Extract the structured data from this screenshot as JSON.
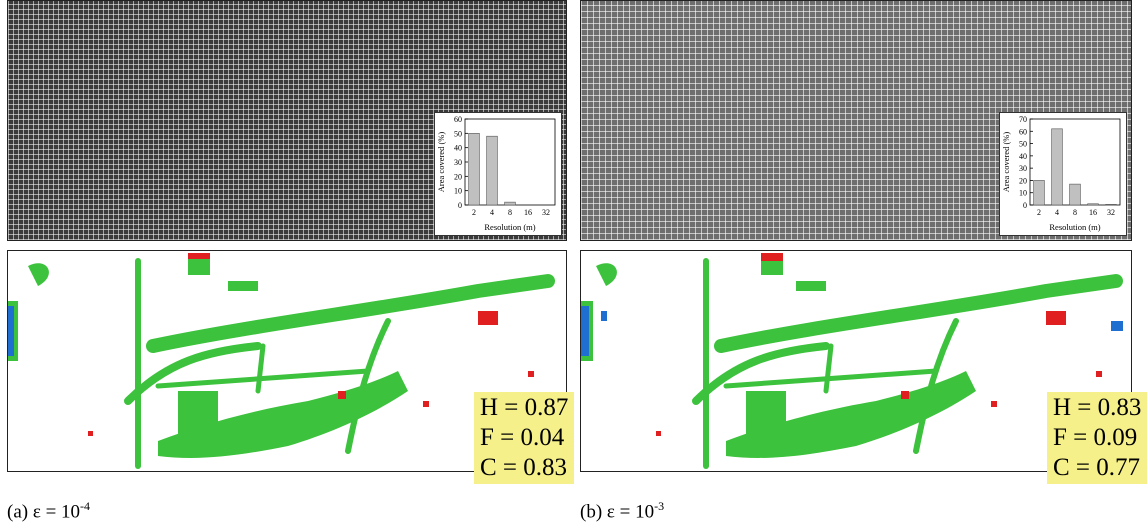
{
  "panels": {
    "a": {
      "caption_prefix": "(a) ε = 10",
      "caption_exp": "-4",
      "stats": {
        "h": "H = 0.87",
        "f": "F = 0.04",
        "c": "C = 0.83"
      }
    },
    "b": {
      "caption_prefix": "(b) ε = 10",
      "caption_exp": "-3",
      "stats": {
        "h": "H = 0.83",
        "f": "F = 0.09",
        "c": "C = 0.77"
      }
    }
  },
  "colors": {
    "hit": "#3cc23c",
    "false_alarm": "#e02020",
    "miss": "#1f6fd0",
    "bar": "#c0c0c0"
  },
  "chart_data": [
    {
      "type": "bar",
      "categories": [
        "2",
        "4",
        "8",
        "16",
        "32"
      ],
      "values": [
        50,
        48,
        2,
        0,
        0
      ],
      "xlabel": "Resolution (m)",
      "ylabel": "Area covered (%)",
      "ylim": [
        0,
        60
      ],
      "yticks": [
        "0",
        "10",
        "20",
        "30",
        "40",
        "50",
        "60"
      ]
    },
    {
      "type": "bar",
      "categories": [
        "2",
        "4",
        "8",
        "16",
        "32"
      ],
      "values": [
        20,
        62,
        17,
        1,
        0.5
      ],
      "xlabel": "Resolution (m)",
      "ylabel": "Area covered (%)",
      "ylim": [
        0,
        70
      ],
      "yticks": [
        "0",
        "10",
        "20",
        "30",
        "40",
        "50",
        "60",
        "70"
      ]
    }
  ]
}
